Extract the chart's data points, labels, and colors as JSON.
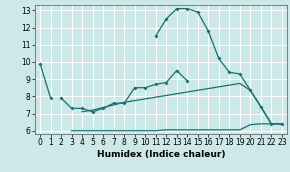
{
  "bg_color": "#cce8e8",
  "grid_color": "#ffffff",
  "line_color": "#1a7070",
  "xlabel": "Humidex (Indice chaleur)",
  "xlim": [
    -0.5,
    23.5
  ],
  "ylim": [
    5.8,
    13.3
  ],
  "xticks": [
    0,
    1,
    2,
    3,
    4,
    5,
    6,
    7,
    8,
    9,
    10,
    11,
    12,
    13,
    14,
    15,
    16,
    17,
    18,
    19,
    20,
    21,
    22,
    23
  ],
  "yticks": [
    6,
    7,
    8,
    9,
    10,
    11,
    12,
    13
  ],
  "curve_short": {
    "x": [
      0,
      1
    ],
    "y": [
      9.9,
      7.9
    ]
  },
  "curve_mid": {
    "x": [
      2,
      3,
      4,
      5,
      6,
      7,
      8,
      9,
      10,
      11,
      12,
      13,
      14
    ],
    "y": [
      7.9,
      7.3,
      7.3,
      7.1,
      7.3,
      7.6,
      7.6,
      8.5,
      8.5,
      8.7,
      8.8,
      9.5,
      8.9
    ]
  },
  "curve_peak": {
    "x": [
      11,
      12,
      13,
      14,
      15,
      16,
      17,
      18,
      19,
      20,
      21,
      22,
      23
    ],
    "y": [
      11.5,
      12.5,
      13.1,
      13.1,
      12.9,
      11.8,
      10.2,
      9.4,
      9.3,
      8.35,
      7.4,
      6.4,
      6.4
    ]
  },
  "curve_slope": {
    "x": [
      4,
      5,
      6,
      7,
      8,
      9,
      10,
      11,
      12,
      13,
      14,
      15,
      16,
      17,
      18,
      19,
      20,
      21,
      22,
      23
    ],
    "y": [
      7.1,
      7.2,
      7.35,
      7.5,
      7.65,
      7.75,
      7.85,
      7.95,
      8.05,
      8.15,
      8.25,
      8.35,
      8.45,
      8.55,
      8.65,
      8.75,
      8.35,
      7.4,
      6.4,
      6.4
    ]
  },
  "curve_flat": {
    "x": [
      3,
      4,
      5,
      6,
      7,
      8,
      9,
      10,
      11,
      12,
      13,
      14,
      15,
      16,
      17,
      18,
      19,
      20,
      21,
      22,
      23
    ],
    "y": [
      6.0,
      6.0,
      6.0,
      6.0,
      6.0,
      6.0,
      6.0,
      6.0,
      6.0,
      6.05,
      6.05,
      6.05,
      6.05,
      6.05,
      6.05,
      6.05,
      6.05,
      6.35,
      6.4,
      6.4,
      6.4
    ]
  }
}
